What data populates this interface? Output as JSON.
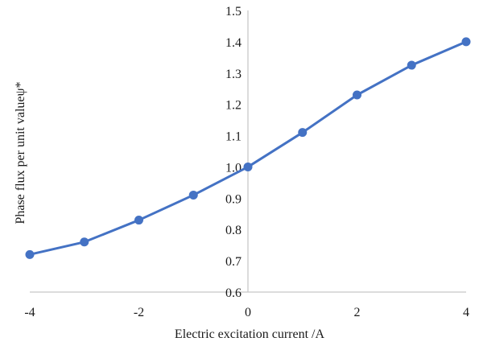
{
  "chart_data": {
    "type": "line",
    "title": "",
    "xlabel": "Electric excitation current /A",
    "ylabel": "Phase flux per unit valueψ*",
    "xlim": [
      -4,
      4
    ],
    "ylim": [
      0.6,
      1.5
    ],
    "xticks": [
      "-4",
      "-2",
      "0",
      "2",
      "4"
    ],
    "yticks": [
      "0.6",
      "0.7",
      "0.8",
      "0.9",
      "1.0",
      "1.1",
      "1.2",
      "1.3",
      "1.4",
      "1.5"
    ],
    "grid": false,
    "legend": "none",
    "series": [
      {
        "x": [
          -4,
          -3,
          -2,
          -1,
          0,
          1,
          2,
          3,
          4
        ],
        "y": [
          0.72,
          0.76,
          0.83,
          0.91,
          1.0,
          1.11,
          1.23,
          1.325,
          1.4
        ]
      }
    ],
    "colors": {
      "series": "#4472c4",
      "axis": "#c8c8c8",
      "text": "#1a1a1a"
    }
  }
}
